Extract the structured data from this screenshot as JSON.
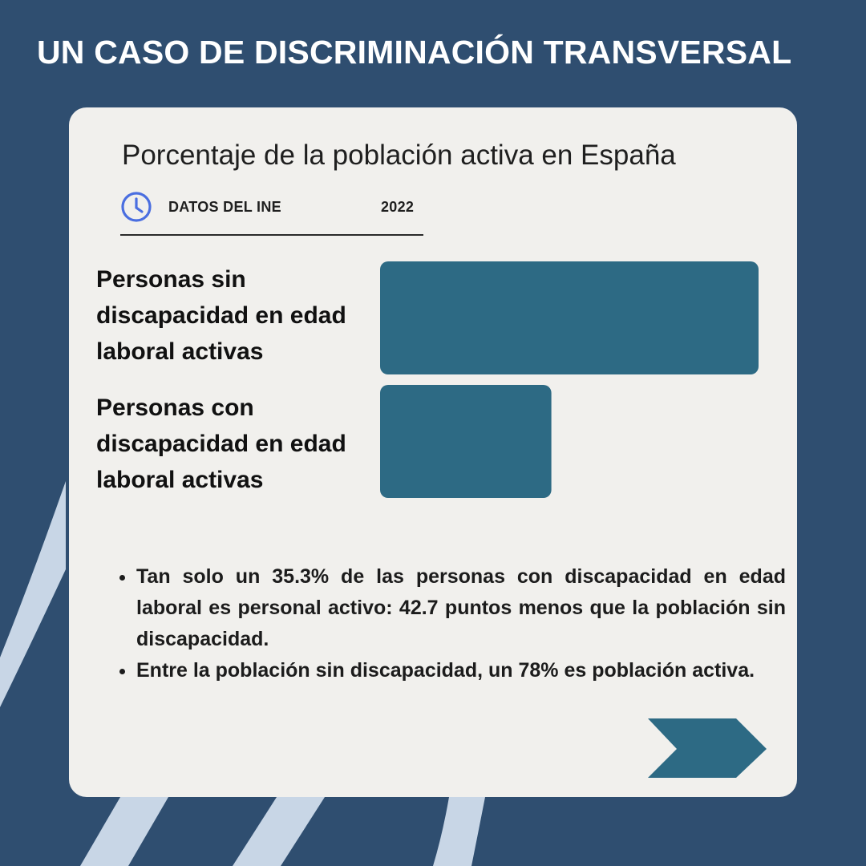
{
  "header": {
    "title": "UN CASO DE DISCRIMINACIÓN TRANSVERSAL"
  },
  "card": {
    "subtitle": "Porcentaje de la población activa en España",
    "source": "DATOS DEL INE",
    "year": "2022",
    "icon": "clock-icon",
    "notes": [
      "Tan solo un 35.3% de las personas con discapacidad en edad laboral es personal activo: 42.7 puntos menos que la población sin discapacidad.",
      "Entre la población sin discapacidad, un 78% es población activa."
    ],
    "next_icon": "chevron-right-icon"
  },
  "chart_data": {
    "type": "bar",
    "orientation": "horizontal",
    "title": "Porcentaje de la población activa en España",
    "categories": [
      "Personas sin discapacidad en edad laboral activas",
      "Personas con discapacidad en edad laboral activas"
    ],
    "values": [
      78,
      35.3
    ],
    "xlim": [
      0,
      78
    ],
    "grid": false,
    "bar_color": "#2d6a84"
  },
  "colors": {
    "background": "#2f4e70",
    "card": "#f1f0ed",
    "bar": "#2d6a84",
    "accent_icon": "#4a6ee0",
    "deco_stripes": "#c8d6e6"
  }
}
